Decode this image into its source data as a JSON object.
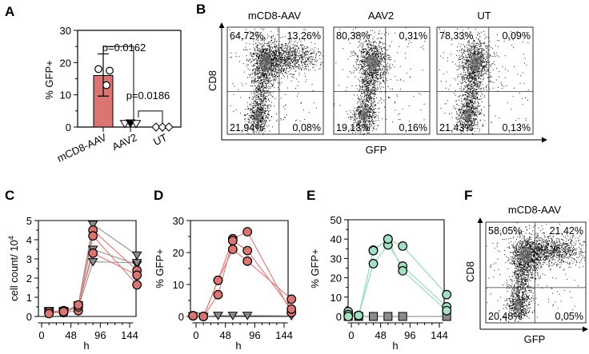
{
  "colors": {
    "red": "#d97673",
    "red_line": "#e27f7c",
    "gray": "#8c8c8c",
    "green": "#a6e0c4",
    "green_line": "#9adbbd"
  },
  "chart_data": [
    {
      "panel": "A",
      "type": "bar",
      "ylabel": "% GFP+",
      "ylim": [
        0,
        30
      ],
      "yticks": [
        0,
        10,
        20,
        30
      ],
      "categories": [
        "mCD8-AAV",
        "AAV2",
        "UT"
      ],
      "values": [
        16,
        1,
        0
      ],
      "error": [
        [
          9.6,
          22.7
        ],
        null,
        null
      ],
      "points": [
        [
          18,
          13,
          17.5
        ],
        [
          0.8,
          1.0,
          0.8
        ],
        [
          0,
          0,
          0
        ]
      ],
      "annotations": [
        {
          "text": "p=0.0162",
          "between": [
            "mCD8-AAV",
            "AAV2"
          ]
        },
        {
          "text": "p=0.0186",
          "between": [
            "AAV2",
            "UT"
          ]
        }
      ]
    },
    {
      "panel": "B",
      "type": "scatter",
      "xlabel": "GFP",
      "ylabel": "CD8",
      "plots": [
        {
          "title": "mCD8-AAV",
          "quadrants": {
            "ul": "64,72%",
            "ur": "13,26%",
            "ll": "21,94%",
            "lr": "0,08%"
          }
        },
        {
          "title": "AAV2",
          "quadrants": {
            "ul": "80,38%",
            "ur": "0,31%",
            "ll": "19,13%",
            "lr": "0,16%"
          }
        },
        {
          "title": "UT",
          "quadrants": {
            "ul": "78,33%",
            "ur": "0,09%",
            "ll": "21,43%",
            "lr": "0,13%"
          }
        }
      ]
    },
    {
      "panel": "C",
      "type": "line",
      "xlabel": "h",
      "ylabel": "cell count/ 10",
      "ylabel_sup": "4",
      "ylim": [
        0,
        5
      ],
      "yticks": [
        0,
        1,
        2,
        3,
        4,
        5
      ],
      "xticks": [
        0,
        48,
        96,
        144
      ],
      "xlim": [
        -8,
        160
      ],
      "x": [
        12,
        36,
        60,
        84,
        156
      ],
      "series": [
        {
          "name": "mCD8-AAV",
          "marker": "circle",
          "color": "red",
          "values": [
            [
              0.2,
              0.2,
              0.3,
              4.5,
              2.4
            ],
            [
              0.25,
              0.3,
              0.5,
              4.2,
              1.65
            ],
            [
              0.15,
              0.25,
              0.6,
              3.3,
              2.15
            ]
          ]
        },
        {
          "name": "AAV2",
          "marker": "triangle",
          "color": "gray",
          "values": [
            [
              0.3,
              0.25,
              0.6,
              4.8,
              3.2
            ],
            [
              0.25,
              0.2,
              0.5,
              3.5,
              2.7
            ],
            [
              0.2,
              0.3,
              0.45,
              2.85,
              2.8
            ]
          ]
        }
      ]
    },
    {
      "panel": "D",
      "type": "line",
      "xlabel": "h",
      "ylabel": "% GFP+",
      "ylim": [
        0,
        30
      ],
      "yticks": [
        0,
        10,
        20,
        30
      ],
      "xticks": [
        0,
        48,
        96,
        144
      ],
      "xlim": [
        -12,
        160
      ],
      "x": [
        -5,
        12,
        36,
        60,
        84,
        156
      ],
      "series": [
        {
          "name": "mCD8-AAV",
          "marker": "circle",
          "color": "red",
          "values": [
            [
              0.2,
              0,
              11.3,
              24.3,
              26.5,
              1.2
            ],
            [
              0.2,
              0,
              6.8,
              23.7,
              20.6,
              2.3
            ],
            [
              0.2,
              0,
              11.3,
              21,
              17.3,
              5.4
            ]
          ]
        },
        {
          "name": "AAV2",
          "marker": "triangle",
          "color": "gray",
          "values": [
            [
              0.2,
              0,
              0.3,
              0.3,
              0.3,
              0.2
            ]
          ]
        }
      ]
    },
    {
      "panel": "E",
      "type": "line",
      "xlabel": "h",
      "ylabel": "% GFP+",
      "ylim": [
        0,
        50
      ],
      "yticks": [
        0,
        10,
        20,
        30,
        40,
        50
      ],
      "xticks": [
        0,
        48,
        96,
        144
      ],
      "xlim": [
        -8,
        160
      ],
      "x": [
        -5,
        12,
        36,
        60,
        84,
        156
      ],
      "series": [
        {
          "name": "mCD8-AAV",
          "marker": "circle",
          "color": "green",
          "values": [
            [
              2.5,
              0.5,
              34.3,
              40,
              36.4,
              11.3
            ],
            [
              1,
              0.5,
              27.3,
              37,
              26,
              5
            ],
            [
              0,
              0.5,
              34,
              40,
              23.6,
              3
            ]
          ]
        },
        {
          "name": "UT",
          "marker": "square",
          "color": "gray",
          "values": [
            [
              0,
              0,
              0,
              0,
              0,
              0
            ]
          ]
        }
      ]
    },
    {
      "panel": "F",
      "type": "scatter",
      "xlabel": "GFP",
      "ylabel": "CD8",
      "plots": [
        {
          "title": "mCD8-AAV",
          "quadrants": {
            "ul": "58,05%",
            "ur": "21,42%",
            "ll": "20,48%",
            "lr": "0,05%"
          }
        }
      ]
    }
  ]
}
